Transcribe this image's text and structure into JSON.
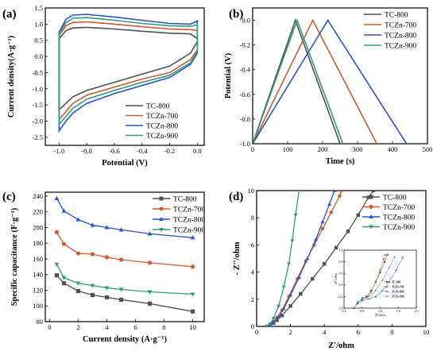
{
  "colors": {
    "TC-800": "#505050",
    "TCZn-700": "#d4572f",
    "TCZn-800": "#2850d2",
    "TCZn-900": "#2e9a82"
  },
  "chart_data": [
    {
      "panel": "(a)",
      "type": "line",
      "xlabel": "Potential (V)",
      "ylabel": "Current density(A·g⁻¹)",
      "xlim": [
        -1.1,
        0.05
      ],
      "ylim": [
        -2.75,
        1.5
      ],
      "xticks": [
        "-1.0",
        "-0.8",
        "-0.6",
        "-0.4",
        "-0.2",
        "0.0"
      ],
      "yticks": [
        "-2.5",
        "-2.0",
        "-1.5",
        "-1.0",
        "-0.5",
        "0.0",
        "0.5",
        "1.0",
        "1.5"
      ],
      "legend_position": "bottom-right",
      "series": [
        {
          "name": "TC-800",
          "upper": [
            [
              -1.0,
              0.55
            ],
            [
              -0.95,
              0.8
            ],
            [
              -0.9,
              0.88
            ],
            [
              -0.8,
              0.9
            ],
            [
              -0.6,
              0.85
            ],
            [
              -0.4,
              0.78
            ],
            [
              -0.2,
              0.72
            ],
            [
              -0.05,
              0.7
            ],
            [
              0.0,
              0.55
            ]
          ],
          "lower": [
            [
              0.0,
              0.45
            ],
            [
              -0.05,
              0.1
            ],
            [
              -0.2,
              -0.3
            ],
            [
              -0.4,
              -0.55
            ],
            [
              -0.6,
              -0.8
            ],
            [
              -0.8,
              -1.05
            ],
            [
              -0.9,
              -1.25
            ],
            [
              -0.95,
              -1.45
            ],
            [
              -1.0,
              -1.65
            ]
          ]
        },
        {
          "name": "TCZn-700",
          "upper": [
            [
              -1.0,
              0.65
            ],
            [
              -0.95,
              0.95
            ],
            [
              -0.9,
              1.05
            ],
            [
              -0.8,
              1.07
            ],
            [
              -0.6,
              1.0
            ],
            [
              -0.4,
              0.92
            ],
            [
              -0.2,
              0.85
            ],
            [
              -0.05,
              0.83
            ],
            [
              0.0,
              0.8
            ]
          ],
          "lower": [
            [
              0.0,
              0.2
            ],
            [
              -0.05,
              -0.1
            ],
            [
              -0.2,
              -0.5
            ],
            [
              -0.4,
              -0.7
            ],
            [
              -0.6,
              -0.95
            ],
            [
              -0.8,
              -1.2
            ],
            [
              -0.9,
              -1.45
            ],
            [
              -0.95,
              -1.7
            ],
            [
              -1.0,
              -1.95
            ]
          ]
        },
        {
          "name": "TCZn-800",
          "upper": [
            [
              -1.0,
              0.75
            ],
            [
              -0.95,
              1.15
            ],
            [
              -0.9,
              1.28
            ],
            [
              -0.8,
              1.3
            ],
            [
              -0.6,
              1.22
            ],
            [
              -0.4,
              1.12
            ],
            [
              -0.2,
              1.02
            ],
            [
              -0.05,
              1.0
            ],
            [
              0.0,
              1.1
            ]
          ],
          "lower": [
            [
              0.0,
              0.1
            ],
            [
              -0.05,
              -0.25
            ],
            [
              -0.2,
              -0.65
            ],
            [
              -0.4,
              -0.9
            ],
            [
              -0.6,
              -1.15
            ],
            [
              -0.8,
              -1.45
            ],
            [
              -0.9,
              -1.75
            ],
            [
              -0.95,
              -2.0
            ],
            [
              -1.0,
              -2.3
            ]
          ]
        },
        {
          "name": "TCZn-900",
          "upper": [
            [
              -1.0,
              0.7
            ],
            [
              -0.95,
              1.05
            ],
            [
              -0.9,
              1.18
            ],
            [
              -0.8,
              1.2
            ],
            [
              -0.6,
              1.12
            ],
            [
              -0.4,
              1.02
            ],
            [
              -0.2,
              0.95
            ],
            [
              -0.05,
              0.93
            ],
            [
              0.0,
              0.98
            ]
          ],
          "lower": [
            [
              0.0,
              0.15
            ],
            [
              -0.05,
              -0.2
            ],
            [
              -0.2,
              -0.58
            ],
            [
              -0.4,
              -0.8
            ],
            [
              -0.6,
              -1.05
            ],
            [
              -0.8,
              -1.32
            ],
            [
              -0.9,
              -1.6
            ],
            [
              -0.95,
              -1.85
            ],
            [
              -1.0,
              -2.1
            ]
          ]
        }
      ]
    },
    {
      "panel": "(b)",
      "type": "line",
      "xlabel": "Time (s)",
      "ylabel": "Potential (V)",
      "xlim": [
        0,
        500
      ],
      "ylim": [
        -1.0,
        0.1
      ],
      "xticks": [
        "0",
        "100",
        "200",
        "300",
        "400",
        "500"
      ],
      "yticks": [
        "-1.0",
        "-0.8",
        "-0.6",
        "-0.4",
        "-0.2",
        "0.0"
      ],
      "legend_position": "top-right",
      "series": [
        {
          "name": "TC-800",
          "x": [
            0,
            122,
            250
          ],
          "y": [
            -1.0,
            0.0,
            -1.0
          ]
        },
        {
          "name": "TCZn-700",
          "x": [
            0,
            172,
            355
          ],
          "y": [
            -1.0,
            0.0,
            -1.0
          ]
        },
        {
          "name": "TCZn-800",
          "x": [
            0,
            215,
            440
          ],
          "y": [
            -1.0,
            0.0,
            -1.0
          ]
        },
        {
          "name": "TCZn-900",
          "x": [
            0,
            127,
            258
          ],
          "y": [
            -1.0,
            0.0,
            -1.0
          ]
        }
      ]
    },
    {
      "panel": "(c)",
      "type": "line",
      "xlabel": "Current density (A·g⁻¹)",
      "ylabel": "Specific capacitance (F·g⁻¹)",
      "xlim": [
        -0.3,
        10.8
      ],
      "ylim": [
        80,
        245
      ],
      "xticks": [
        "0",
        "2",
        "4",
        "6",
        "8",
        "10"
      ],
      "yticks": [
        "80",
        "100",
        "120",
        "140",
        "160",
        "180",
        "200",
        "220",
        "240"
      ],
      "legend_position": "top-right",
      "x": [
        0.5,
        1,
        2,
        3,
        4,
        5,
        7,
        10
      ],
      "series": [
        {
          "name": "TC-800",
          "values": [
            139,
            129,
            119,
            114,
            111,
            108,
            103,
            93
          ]
        },
        {
          "name": "TCZn-700",
          "values": [
            194,
            179,
            167,
            166,
            162,
            159,
            155,
            150
          ]
        },
        {
          "name": "TCZn-800",
          "values": [
            237,
            221,
            210,
            203,
            200,
            197,
            192,
            187
          ]
        },
        {
          "name": "TCZn-900",
          "values": [
            153,
            136,
            129,
            126,
            123,
            121,
            118,
            115
          ]
        }
      ]
    },
    {
      "panel": "(d)",
      "type": "scatter",
      "xlabel": "Z'/ohm",
      "ylabel": "- Z''/ohm",
      "xlim": [
        0,
        10
      ],
      "ylim": [
        0,
        10
      ],
      "xticks": [
        "0",
        "2",
        "4",
        "6",
        "8",
        "10"
      ],
      "yticks": [
        "0",
        "2",
        "4",
        "6",
        "8",
        "10"
      ],
      "legend_position": "top-right",
      "series": [
        {
          "name": "TC-800",
          "points": [
            [
              0.6,
              0
            ],
            [
              0.8,
              0.1
            ],
            [
              1.0,
              0.25
            ],
            [
              1.2,
              0.45
            ],
            [
              1.5,
              0.8
            ],
            [
              2.0,
              1.5
            ],
            [
              2.6,
              2.4
            ],
            [
              3.3,
              3.5
            ],
            [
              4.0,
              4.6
            ],
            [
              4.7,
              5.8
            ],
            [
              5.4,
              7.0
            ],
            [
              6.0,
              8.2
            ],
            [
              6.6,
              9.5
            ],
            [
              6.9,
              10
            ]
          ]
        },
        {
          "name": "TCZn-700",
          "points": [
            [
              0.6,
              0
            ],
            [
              0.8,
              0.15
            ],
            [
              1.0,
              0.35
            ],
            [
              1.2,
              0.65
            ],
            [
              1.5,
              1.2
            ],
            [
              1.9,
              2.2
            ],
            [
              2.4,
              3.5
            ],
            [
              2.9,
              4.8
            ],
            [
              3.4,
              6.0
            ],
            [
              3.9,
              7.2
            ],
            [
              4.4,
              8.4
            ],
            [
              4.9,
              9.6
            ],
            [
              5.0,
              10
            ]
          ]
        },
        {
          "name": "TCZn-800",
          "points": [
            [
              0.6,
              0
            ],
            [
              0.8,
              0.1
            ],
            [
              1.0,
              0.3
            ],
            [
              1.3,
              0.7
            ],
            [
              1.6,
              1.3
            ],
            [
              2.0,
              2.3
            ],
            [
              2.5,
              3.6
            ],
            [
              3.0,
              5.0
            ],
            [
              3.5,
              6.4
            ],
            [
              3.9,
              7.7
            ],
            [
              4.3,
              9.0
            ],
            [
              4.6,
              10
            ]
          ]
        },
        {
          "name": "TCZn-900",
          "points": [
            [
              0.6,
              0
            ],
            [
              0.8,
              0.2
            ],
            [
              1.0,
              0.6
            ],
            [
              1.3,
              1.5
            ],
            [
              1.6,
              2.9
            ],
            [
              1.9,
              4.6
            ],
            [
              2.1,
              6.3
            ],
            [
              2.3,
              8.2
            ],
            [
              2.5,
              10
            ]
          ]
        }
      ],
      "inset": {
        "xlabel": "Z'/ohm",
        "ylabel": "-Z''/ohm",
        "xlim": [
          0.4,
          2.0
        ],
        "ylim": [
          0,
          1.0
        ],
        "xticks": [
          "0.4",
          "0.8",
          "1.2",
          "1.6",
          "2.0"
        ],
        "yticks": [
          "0.0",
          "0.2",
          "0.4",
          "0.6",
          "0.8",
          "1.0"
        ],
        "legend_position": "bottom-right",
        "series": [
          {
            "name": "TC-800",
            "points": [
              [
                0.62,
                0
              ],
              [
                0.7,
                0.1
              ],
              [
                0.8,
                0.17
              ],
              [
                0.9,
                0.2
              ],
              [
                1.0,
                0.3
              ],
              [
                1.1,
                0.45
              ],
              [
                1.2,
                0.62
              ],
              [
                1.3,
                0.8
              ],
              [
                1.36,
                0.92
              ]
            ]
          },
          {
            "name": "TCZn-700",
            "points": [
              [
                0.62,
                0
              ],
              [
                0.7,
                0.08
              ],
              [
                0.8,
                0.14
              ],
              [
                0.9,
                0.18
              ],
              [
                1.0,
                0.28
              ],
              [
                1.1,
                0.46
              ],
              [
                1.2,
                0.66
              ],
              [
                1.28,
                0.85
              ],
              [
                1.31,
                0.92
              ]
            ]
          },
          {
            "name": "TCZn-800",
            "points": [
              [
                0.62,
                0
              ],
              [
                0.7,
                0.08
              ],
              [
                0.8,
                0.13
              ],
              [
                0.95,
                0.16
              ],
              [
                1.1,
                0.2
              ],
              [
                1.25,
                0.3
              ],
              [
                1.4,
                0.45
              ],
              [
                1.55,
                0.65
              ],
              [
                1.7,
                0.88
              ]
            ]
          },
          {
            "name": "TCZn-900",
            "points": [
              [
                0.62,
                0
              ],
              [
                0.7,
                0.1
              ],
              [
                0.8,
                0.16
              ],
              [
                0.95,
                0.2
              ],
              [
                1.1,
                0.3
              ],
              [
                1.25,
                0.48
              ],
              [
                1.4,
                0.7
              ],
              [
                1.52,
                0.88
              ]
            ]
          }
        ]
      }
    }
  ]
}
